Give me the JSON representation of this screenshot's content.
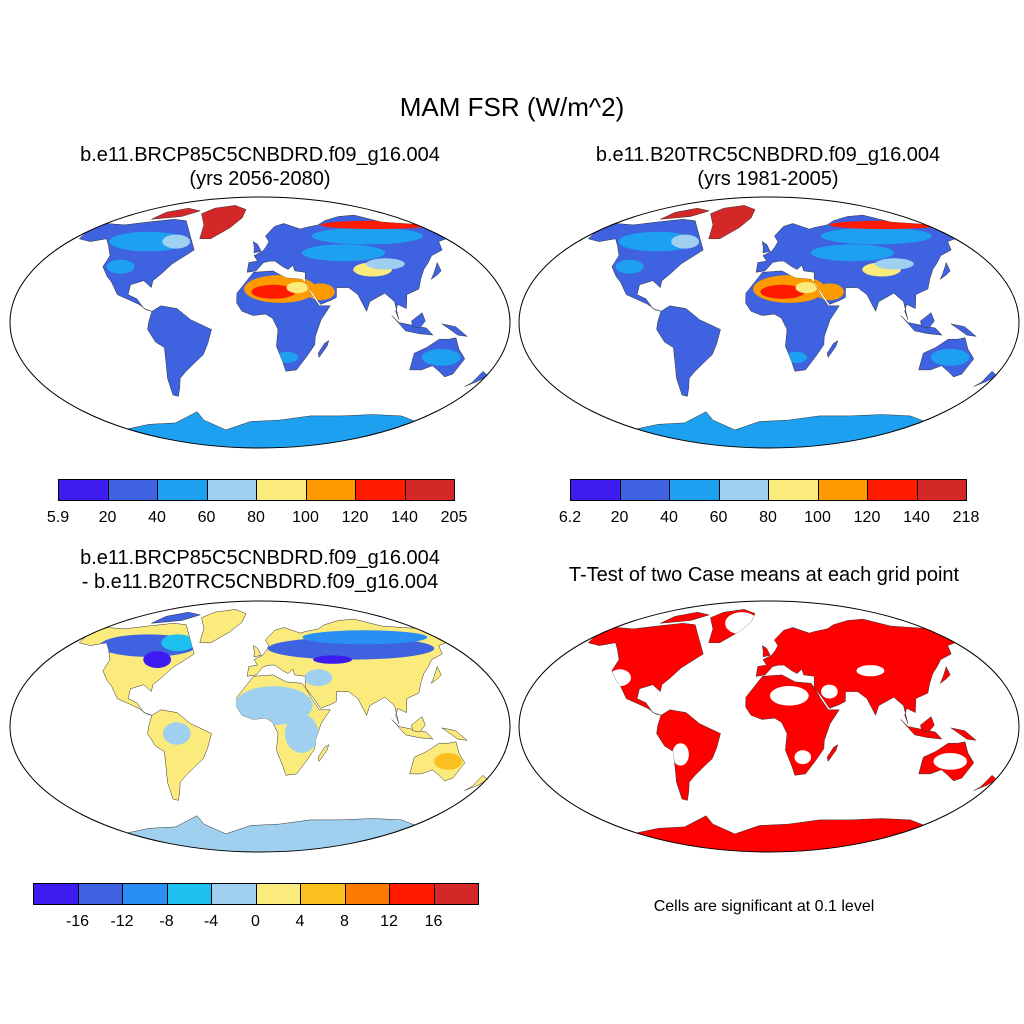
{
  "title": "MAM FSR (W/m^2)",
  "panels": [
    {
      "line1": "b.e11.BRCP85C5CNBDRD.f09_g16.004",
      "line2": "(yrs 2056-2080)"
    },
    {
      "line1": "b.e11.B20TRC5CNBDRD.f09_g16.004",
      "line2": "(yrs 1981-2005)"
    },
    {
      "line1": "b.e11.BRCP85C5CNBDRD.f09_g16.004",
      "line2": "- b.e11.B20TRC5CNBDRD.f09_g16.004"
    },
    {
      "line1": "T-Test of two Case means at each grid point"
    }
  ],
  "note": "Cells are significant at 0.1 level",
  "colorbars": [
    {
      "colors": [
        "#3c1cf0",
        "#3f62e0",
        "#1ea0f0",
        "#a0d0f0",
        "#fbeb7d",
        "#fd9a00",
        "#ff1a00",
        "#d42828"
      ],
      "labels": [
        "5.9",
        "20",
        "40",
        "60",
        "80",
        "100",
        "120",
        "140",
        "205"
      ]
    },
    {
      "colors": [
        "#3c1cf0",
        "#3f62e0",
        "#1ea0f0",
        "#a0d0f0",
        "#fbeb7d",
        "#fd9a00",
        "#ff1a00",
        "#d42828"
      ],
      "labels": [
        "6.2",
        "20",
        "40",
        "60",
        "80",
        "100",
        "120",
        "140",
        "218"
      ]
    },
    {
      "colors": [
        "#3c1cf0",
        "#3f62e0",
        "#2a8ff5",
        "#1ec0f0",
        "#a0d0f0",
        "#fbeb7d",
        "#fbc020",
        "#fd7a00",
        "#ff1a00",
        "#d42828"
      ],
      "labels": [
        "-16",
        "-12",
        "-8",
        "-4",
        "0",
        "4",
        "8",
        "12",
        "16"
      ]
    }
  ],
  "chart_data": [
    {
      "type": "heatmap",
      "panel": "future",
      "units": "W/m^2",
      "range": [
        5.9,
        205
      ],
      "scheme": "field"
    },
    {
      "type": "heatmap",
      "panel": "historical",
      "units": "W/m^2",
      "range": [
        6.2,
        218
      ],
      "scheme": "field"
    },
    {
      "type": "heatmap",
      "panel": "difference",
      "units": "W/m^2",
      "levels": [
        -16,
        -12,
        -8,
        -4,
        0,
        4,
        8,
        12,
        16
      ],
      "scheme": "diff"
    },
    {
      "type": "heatmap",
      "panel": "ttest",
      "significance_level": 0.1,
      "scheme": "sig"
    }
  ]
}
